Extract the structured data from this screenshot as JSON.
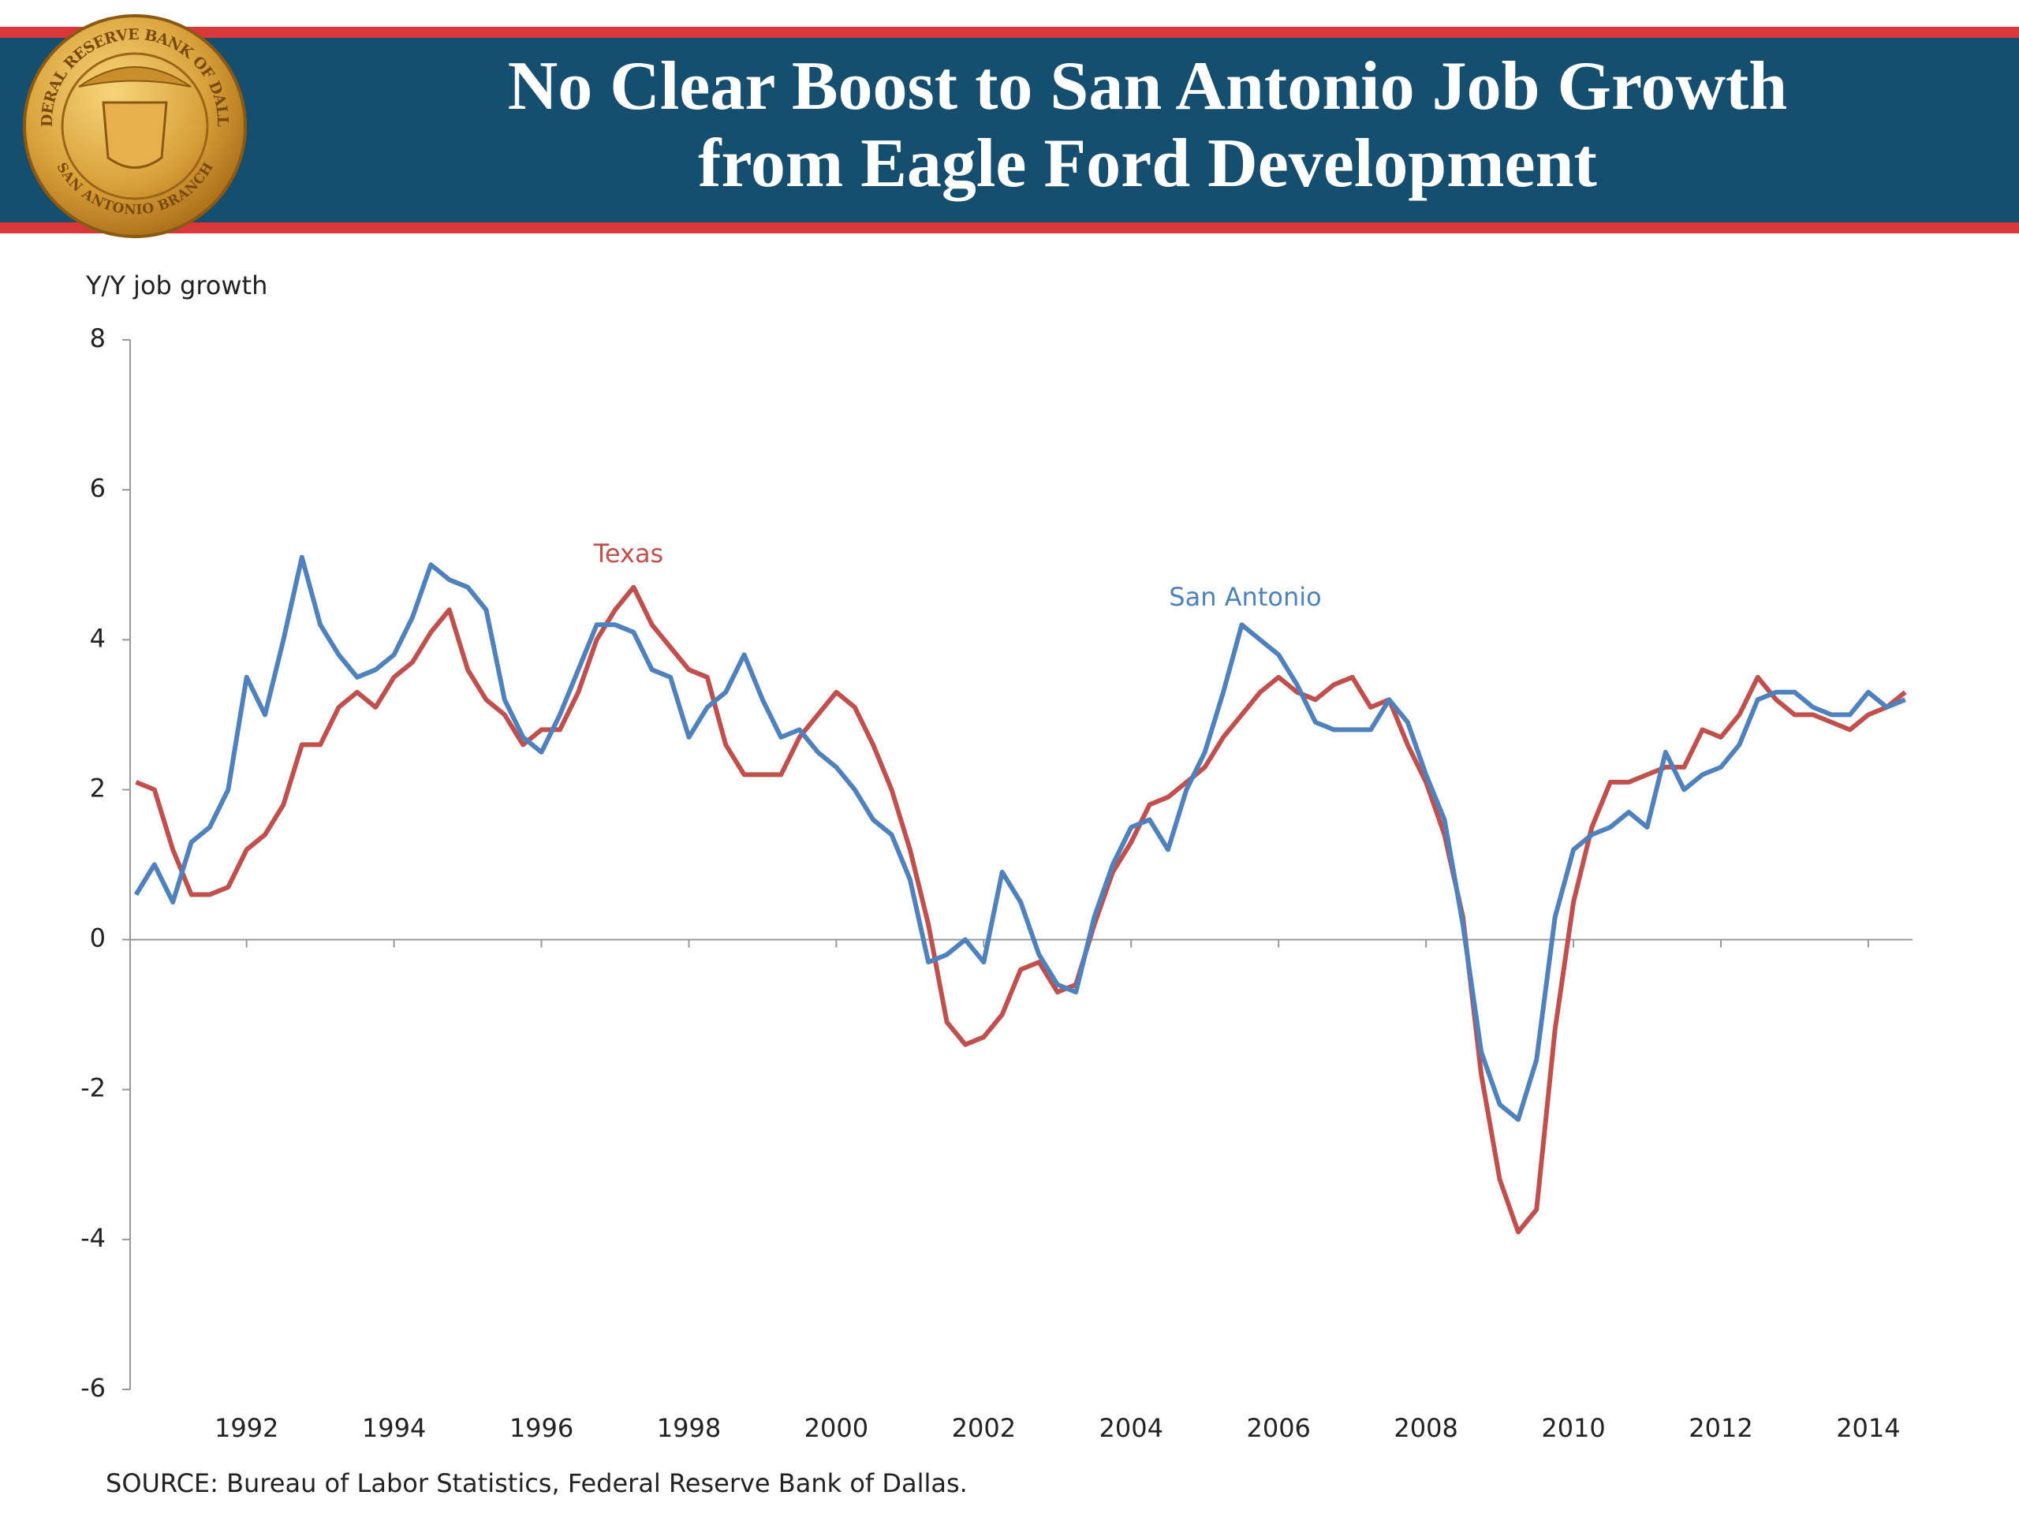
{
  "header": {
    "seal_top": "FEDERAL RESERVE BANK OF DALLAS",
    "seal_bottom": "SAN ANTONIO BRANCH"
  },
  "chart_data": {
    "type": "line",
    "title_lines": [
      "No Clear Boost to San Antonio Job Growth",
      "from Eagle Ford Development"
    ],
    "y_label": "Y/Y job growth",
    "source": "SOURCE: Bureau of Labor Statistics, Federal Reserve Bank of Dallas.",
    "x": [
      1990.5,
      1990.75,
      1991,
      1991.25,
      1991.5,
      1991.75,
      1992,
      1992.25,
      1992.5,
      1992.75,
      1993,
      1993.25,
      1993.5,
      1993.75,
      1994,
      1994.25,
      1994.5,
      1994.75,
      1995,
      1995.25,
      1995.5,
      1995.75,
      1996,
      1996.25,
      1996.5,
      1996.75,
      1997,
      1997.25,
      1997.5,
      1997.75,
      1998,
      1998.25,
      1998.5,
      1998.75,
      1999,
      1999.25,
      1999.5,
      1999.75,
      2000,
      2000.25,
      2000.5,
      2000.75,
      2001,
      2001.25,
      2001.5,
      2001.75,
      2002,
      2002.25,
      2002.5,
      2002.75,
      2003,
      2003.25,
      2003.5,
      2003.75,
      2004,
      2004.25,
      2004.5,
      2004.75,
      2005,
      2005.25,
      2005.5,
      2005.75,
      2006,
      2006.25,
      2006.5,
      2006.75,
      2007,
      2007.25,
      2007.5,
      2007.75,
      2008,
      2008.25,
      2008.5,
      2008.75,
      2009,
      2009.25,
      2009.5,
      2009.75,
      2010,
      2010.25,
      2010.5,
      2010.75,
      2011,
      2011.25,
      2011.5,
      2011.75,
      2012,
      2012.25,
      2012.5,
      2012.75,
      2013,
      2013.25,
      2013.5,
      2013.75,
      2014,
      2014.25,
      2014.5
    ],
    "series": [
      {
        "name": "Texas",
        "color": "#c0504d",
        "values": [
          2.1,
          2.0,
          1.2,
          0.6,
          0.6,
          0.7,
          1.2,
          1.4,
          1.8,
          2.6,
          2.6,
          3.1,
          3.3,
          3.1,
          3.5,
          3.7,
          4.1,
          4.4,
          3.6,
          3.2,
          3.0,
          2.6,
          2.8,
          2.8,
          3.3,
          4.0,
          4.4,
          4.7,
          4.2,
          3.9,
          3.6,
          3.5,
          2.6,
          2.2,
          2.2,
          2.2,
          2.7,
          3.0,
          3.3,
          3.1,
          2.6,
          2.0,
          1.2,
          0.2,
          -1.1,
          -1.4,
          -1.3,
          -1.0,
          -0.4,
          -0.3,
          -0.7,
          -0.6,
          0.2,
          0.9,
          1.3,
          1.8,
          1.9,
          2.1,
          2.3,
          2.7,
          3.0,
          3.3,
          3.5,
          3.3,
          3.2,
          3.4,
          3.5,
          3.1,
          3.2,
          2.6,
          2.1,
          1.4,
          0.3,
          -1.8,
          -3.2,
          -3.9,
          -3.6,
          -1.2,
          0.5,
          1.5,
          2.1,
          2.1,
          2.2,
          2.3,
          2.3,
          2.8,
          2.7,
          3.0,
          3.5,
          3.2,
          3.0,
          3.0,
          2.9,
          2.8,
          3.0,
          3.1,
          3.3
        ]
      },
      {
        "name": "San Antonio",
        "color": "#4f81bd",
        "values": [
          0.6,
          1.0,
          0.5,
          1.3,
          1.5,
          2.0,
          3.5,
          3.0,
          4.0,
          5.1,
          4.2,
          3.8,
          3.5,
          3.6,
          3.8,
          4.3,
          5.0,
          4.8,
          4.7,
          4.4,
          3.2,
          2.7,
          2.5,
          3.0,
          3.6,
          4.2,
          4.2,
          4.1,
          3.6,
          3.5,
          2.7,
          3.1,
          3.3,
          3.8,
          3.2,
          2.7,
          2.8,
          2.5,
          2.3,
          2.0,
          1.6,
          1.4,
          0.8,
          -0.3,
          -0.2,
          0.0,
          -0.3,
          0.9,
          0.5,
          -0.2,
          -0.6,
          -0.7,
          0.3,
          1.0,
          1.5,
          1.6,
          1.2,
          2.0,
          2.5,
          3.3,
          4.2,
          4.0,
          3.8,
          3.4,
          2.9,
          2.8,
          2.8,
          2.8,
          3.2,
          2.9,
          2.2,
          1.6,
          0.2,
          -1.5,
          -2.2,
          -2.4,
          -1.6,
          0.3,
          1.2,
          1.4,
          1.5,
          1.7,
          1.5,
          2.5,
          2.0,
          2.2,
          2.3,
          2.6,
          3.2,
          3.3,
          3.3,
          3.1,
          3.0,
          3.0,
          3.3,
          3.1,
          3.2
        ]
      }
    ],
    "xlim": [
      1990.42,
      2014.6
    ],
    "xticks": [
      1992,
      1994,
      1996,
      1998,
      2000,
      2002,
      2004,
      2006,
      2008,
      2010,
      2012,
      2014
    ],
    "ylim": [
      -6,
      8
    ],
    "yticks": [
      -6,
      -4,
      -2,
      0,
      2,
      4,
      6,
      8
    ],
    "grid": false
  }
}
